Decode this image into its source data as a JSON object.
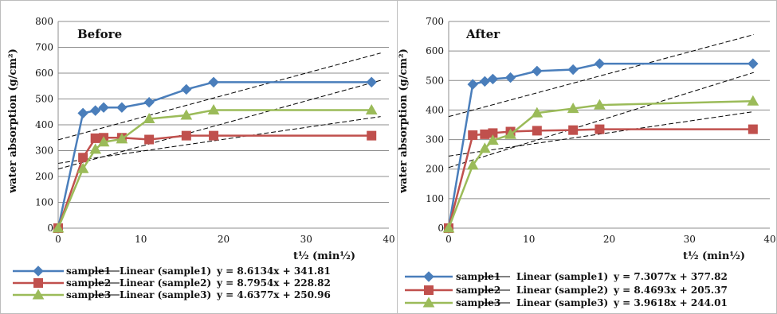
{
  "colors": {
    "sample1": "#4a7ebb",
    "sample2": "#c0504d",
    "sample3": "#9bbb59",
    "trendline": "#000000",
    "grid": "#8c8c8c"
  },
  "chart_data": [
    {
      "type": "line",
      "title": "Before",
      "xlabel": "t½ (min½)",
      "ylabel": "water absorption (g/cm²)",
      "xlim": [
        0,
        40
      ],
      "ylim": [
        0,
        800
      ],
      "xticks": [
        "0",
        "10",
        "20",
        "30",
        "40"
      ],
      "yticks": [
        "0",
        "100",
        "200",
        "300",
        "400",
        "500",
        "600",
        "700",
        "800"
      ],
      "grid": true,
      "legend_position": "bottom",
      "series": [
        {
          "name": "sample1",
          "x": [
            0,
            3,
            4.5,
            5.5,
            7.7,
            11,
            15.5,
            18.8,
            37.9
          ],
          "y": [
            0,
            445,
            455,
            467,
            467,
            487,
            537,
            565,
            565
          ]
        },
        {
          "name": "sample2",
          "x": [
            0,
            3,
            4.5,
            5.5,
            7.7,
            11,
            15.5,
            18.8,
            37.9
          ],
          "y": [
            0,
            273,
            348,
            350,
            350,
            343,
            358,
            358,
            358
          ]
        },
        {
          "name": "sample3",
          "x": [
            0,
            3,
            4.5,
            5.5,
            7.7,
            11,
            15.5,
            18.8,
            37.9
          ],
          "y": [
            0,
            230,
            305,
            333,
            345,
            423,
            437,
            457,
            457
          ]
        }
      ],
      "trendlines": [
        {
          "name": "Linear (sample1)",
          "equation": "y = 8.6134x + 341.81",
          "slope": 8.6134,
          "intercept": 341.81,
          "x_range": [
            0,
            39
          ]
        },
        {
          "name": "Linear (sample2)",
          "equation": "y = 8.7954x + 228.82",
          "slope": 8.7954,
          "intercept": 228.82,
          "x_range": [
            0,
            39
          ]
        },
        {
          "name": "Linear (sample3)",
          "equation": "y = 4.6377x + 250.96",
          "slope": 4.6377,
          "intercept": 250.96,
          "x_range": [
            0,
            39
          ]
        }
      ]
    },
    {
      "type": "line",
      "title": "After",
      "xlabel": "t½ (min½)",
      "ylabel": "water absorption (g/cm²)",
      "xlim": [
        0,
        40
      ],
      "ylim": [
        0,
        700
      ],
      "xticks": [
        "0",
        "10",
        "20",
        "30",
        "40"
      ],
      "yticks": [
        "0",
        "100",
        "200",
        "300",
        "400",
        "500",
        "600",
        "700"
      ],
      "grid": true,
      "legend_position": "bottom",
      "series": [
        {
          "name": "sample1",
          "x": [
            0,
            3,
            4.5,
            5.5,
            7.7,
            11,
            15.5,
            18.8,
            37.9
          ],
          "y": [
            0,
            487,
            497,
            505,
            510,
            532,
            537,
            557,
            557
          ]
        },
        {
          "name": "sample2",
          "x": [
            0,
            3,
            4.5,
            5.5,
            7.7,
            11,
            15.5,
            18.8,
            37.9
          ],
          "y": [
            0,
            315,
            318,
            322,
            327,
            330,
            332,
            335,
            335
          ]
        },
        {
          "name": "sample3",
          "x": [
            0,
            3,
            4.5,
            5.5,
            7.7,
            11,
            15.5,
            18.8,
            37.9
          ],
          "y": [
            0,
            213,
            270,
            297,
            317,
            390,
            405,
            417,
            430
          ]
        }
      ],
      "trendlines": [
        {
          "name": "Linear (sample1)",
          "equation": "y = 7.3077x + 377.82",
          "slope": 7.3077,
          "intercept": 377.82,
          "x_range": [
            0,
            38
          ]
        },
        {
          "name": "Linear (sample2)",
          "equation": "y = 8.4693x + 205.37",
          "slope": 8.4693,
          "intercept": 205.37,
          "x_range": [
            0,
            38
          ]
        },
        {
          "name": "Linear (sample3)",
          "equation": "y = 3.9618x + 244.01",
          "slope": 3.9618,
          "intercept": 244.01,
          "x_range": [
            0,
            38
          ]
        }
      ]
    }
  ]
}
